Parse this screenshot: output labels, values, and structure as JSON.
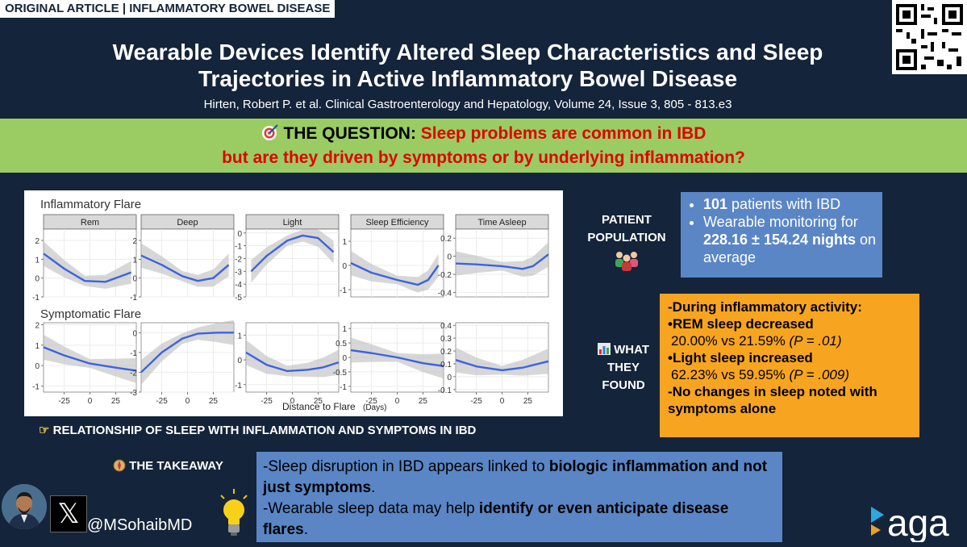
{
  "header": {
    "tag": "ORIGINAL ARTICLE | INFLAMMATORY BOWEL DISEASE",
    "title_line1": "Wearable Devices Identify Altered Sleep Characteristics and Sleep",
    "title_line2": "Trajectories in Active Inflammatory Bowel Disease",
    "citation": "Hirten, Robert P. et al. Clinical Gastroenterology and Hepatology, Volume 24, Issue 3, 805 - 813.e3"
  },
  "question": {
    "icon": "target-icon",
    "label": "THE QUESTION:",
    "line1": "Sleep problems are common in IBD",
    "line2": "but are they driven by symptoms or by underlying inflammation?"
  },
  "figure": {
    "caption_icon": "pointing-hand-icon",
    "caption": "RELATIONSHIP OF SLEEP WITH INFLAMMATION AND SYMPTOMS IN IBD"
  },
  "chart_data": {
    "type": "line",
    "xlabel": "Distance to Flare",
    "xlabel_unit": "(Days)",
    "x_ticks": [
      -25,
      0,
      25
    ],
    "xlim": [
      -45,
      45
    ],
    "facets": [
      "Rem",
      "Deep",
      "Light",
      "Sleep Efficiency",
      "Time Asleep"
    ],
    "rows": [
      {
        "label": "Inflammatory Flare",
        "panels": [
          {
            "facet": "Rem",
            "y_ticks": [
              -1,
              0,
              1,
              2
            ],
            "ylim": [
              -1,
              2.6
            ],
            "x": [
              -45,
              -25,
              -5,
              15,
              30,
              40
            ],
            "y": [
              1.3,
              0.5,
              -0.15,
              -0.2,
              0.1,
              0.3
            ]
          },
          {
            "facet": "Deep",
            "y_ticks": [
              -1,
              0,
              1,
              2
            ],
            "ylim": [
              -1,
              2.6
            ],
            "x": [
              -45,
              -25,
              -5,
              10,
              25,
              40
            ],
            "y": [
              1.2,
              0.7,
              0.1,
              -0.15,
              0.0,
              0.7
            ]
          },
          {
            "facet": "Light",
            "y_ticks": [
              0,
              -1,
              -2,
              -3,
              -4,
              -5
            ],
            "ylim": [
              -5,
              0.3
            ],
            "x": [
              -40,
              -25,
              -5,
              10,
              25,
              40
            ],
            "y": [
              -3.0,
              -1.8,
              -0.6,
              -0.2,
              -0.4,
              -1.5
            ]
          },
          {
            "facet": "Sleep Efficiency",
            "y_ticks": [
              -1,
              0,
              1
            ],
            "ylim": [
              -1.3,
              1.5
            ],
            "x": [
              -45,
              -25,
              0,
              20,
              30,
              40
            ],
            "y": [
              0.1,
              -0.3,
              -0.6,
              -0.8,
              -0.6,
              0.0
            ]
          },
          {
            "facet": "Time Asleep",
            "y_ticks": [
              0.2,
              0.0,
              -0.2,
              -0.4
            ],
            "ylim": [
              -0.45,
              0.3
            ],
            "x": [
              -45,
              -25,
              0,
              20,
              30,
              45
            ],
            "y": [
              -0.08,
              -0.09,
              -0.11,
              -0.14,
              -0.11,
              0.02
            ]
          }
        ]
      },
      {
        "label": "Symptomatic Flare",
        "panels": [
          {
            "facet": "Rem",
            "y_ticks": [
              -1,
              0,
              1,
              2
            ],
            "ylim": [
              -1.3,
              2.1
            ],
            "x": [
              -45,
              -25,
              0,
              25,
              45
            ],
            "y": [
              0.9,
              0.5,
              0.1,
              -0.1,
              -0.25
            ]
          },
          {
            "facet": "Deep",
            "y_ticks": [
              -3,
              -2,
              -1,
              0
            ],
            "ylim": [
              -3,
              0.5
            ],
            "x": [
              -45,
              -25,
              -5,
              10,
              30,
              45
            ],
            "y": [
              -2.0,
              -1.0,
              -0.3,
              -0.05,
              0.0,
              0.0
            ]
          },
          {
            "facet": "Light",
            "y_ticks": [
              -1,
              0,
              1
            ],
            "ylim": [
              -1.3,
              1.5
            ],
            "x": [
              -45,
              -25,
              -5,
              15,
              30,
              45
            ],
            "y": [
              0.3,
              -0.2,
              -0.45,
              -0.4,
              -0.3,
              -0.1
            ]
          },
          {
            "facet": "Sleep Efficiency",
            "y_ticks": [
              -1.0,
              -0.5,
              0.0,
              0.5,
              1.0
            ],
            "ylim": [
              -1.2,
              1.2
            ],
            "x": [
              -45,
              -25,
              0,
              25,
              45
            ],
            "y": [
              0.25,
              0.15,
              0.0,
              -0.2,
              -0.3
            ]
          },
          {
            "facet": "Time Asleep",
            "y_ticks": [
              0.4,
              0.3,
              0.2,
              0.1,
              0.0,
              -0.1
            ],
            "ylim": [
              -0.12,
              0.42
            ],
            "x": [
              -45,
              -25,
              0,
              20,
              45
            ],
            "y": [
              0.13,
              0.08,
              0.05,
              0.07,
              0.12
            ]
          }
        ]
      }
    ]
  },
  "population": {
    "label_line1": "PATIENT",
    "label_line2": "POPULATION",
    "icon": "people-group-icon",
    "bullet1_bold": "101",
    "bullet1_rest": " patients with IBD",
    "bullet2_pre": "Wearable monitoring for ",
    "bullet2_bold": "228.16 ± 154.24 nights",
    "bullet2_post": " on average"
  },
  "findings": {
    "icon": "bar-chart-icon",
    "label_line1": "WHAT",
    "label_line2": "THEY",
    "label_line3": "FOUND",
    "line1": "-During inflammatory activity:",
    "line2": "•REM sleep decreased",
    "line3_values": "20.00% vs 21.59% ",
    "line3_p": "(P = .01)",
    "line4": "•Light sleep increased",
    "line5_values": "62.23% vs 59.95% ",
    "line5_p": "(P = .009)",
    "line6": "-No changes in sleep noted with symptoms alone"
  },
  "takeaway": {
    "icon": "compass-icon",
    "label": "THE TAKEAWAY",
    "p1_pre": "-Sleep disruption in IBD appears linked to ",
    "p1_bold": "biologic inflammation and not just symptoms",
    "p1_post": ".",
    "p2_pre": "-Wearable sleep data may help ",
    "p2_bold": "identify or even anticipate disease flares",
    "p2_post": "."
  },
  "footer": {
    "handle": "@MSohaibMD",
    "logo": "aga"
  },
  "colors": {
    "background": "#14243a",
    "question_band": "#9acc63",
    "question_red": "#e20000",
    "blue_box": "#5a86c6",
    "orange_box": "#f7a520",
    "line_blue": "#3b63e0"
  }
}
